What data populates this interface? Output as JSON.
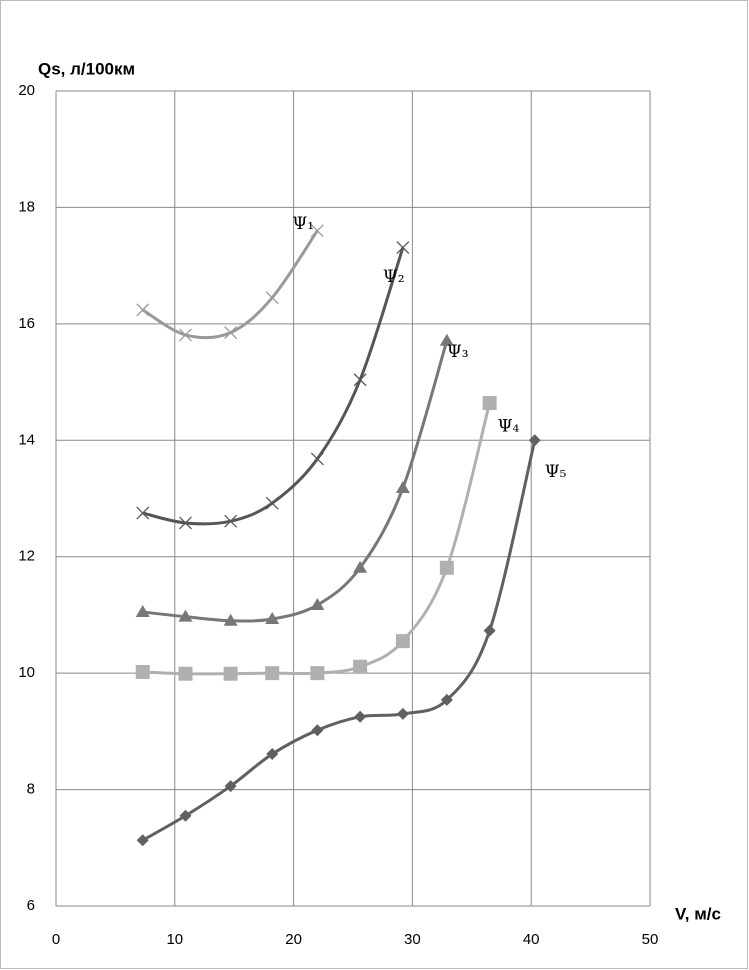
{
  "chart_data": {
    "type": "line",
    "x_label": "V, м/с",
    "y_label": "Qs, л/100км",
    "xlim": [
      0,
      50
    ],
    "xticks": [
      0,
      10,
      20,
      30,
      40,
      50
    ],
    "ylim": [
      6,
      20
    ],
    "yticks": [
      6,
      8,
      10,
      12,
      14,
      16,
      18,
      20
    ],
    "grid": true,
    "smooth": true,
    "series": [
      {
        "name": "Ψ₁",
        "color": "#999999",
        "marker": "x",
        "x": [
          7.3,
          10.9,
          14.7,
          18.2,
          22.0
        ],
        "values": [
          16.24,
          15.81,
          15.85,
          16.45,
          17.6
        ]
      },
      {
        "name": "Ψ₂",
        "color": "#555555",
        "marker": "x",
        "x": [
          7.3,
          10.9,
          14.7,
          18.2,
          22.0,
          25.6,
          29.2
        ],
        "values": [
          12.75,
          12.58,
          12.61,
          12.92,
          13.68,
          15.04,
          17.31
        ]
      },
      {
        "name": "Ψ₃",
        "color": "#777777",
        "marker": "triangle",
        "x": [
          7.3,
          10.9,
          14.7,
          18.2,
          22.0,
          25.6,
          29.2,
          32.9
        ],
        "values": [
          11.05,
          10.97,
          10.9,
          10.93,
          11.17,
          11.81,
          13.18,
          15.71
        ]
      },
      {
        "name": "Ψ₄",
        "color": "#b0b0b0",
        "marker": "square",
        "x": [
          7.3,
          10.9,
          14.7,
          18.2,
          22.0,
          25.6,
          29.2,
          32.9,
          36.5
        ],
        "values": [
          10.02,
          9.99,
          9.99,
          10.0,
          10.0,
          10.11,
          10.55,
          11.81,
          14.64
        ]
      },
      {
        "name": "Ψ₅",
        "color": "#606060",
        "marker": "diamond",
        "x": [
          7.3,
          10.9,
          14.7,
          18.2,
          22.0,
          25.6,
          29.2,
          32.9,
          36.5,
          40.3
        ],
        "values": [
          7.13,
          7.55,
          8.06,
          8.61,
          9.02,
          9.25,
          9.3,
          9.54,
          10.73,
          14.0
        ]
      }
    ]
  }
}
